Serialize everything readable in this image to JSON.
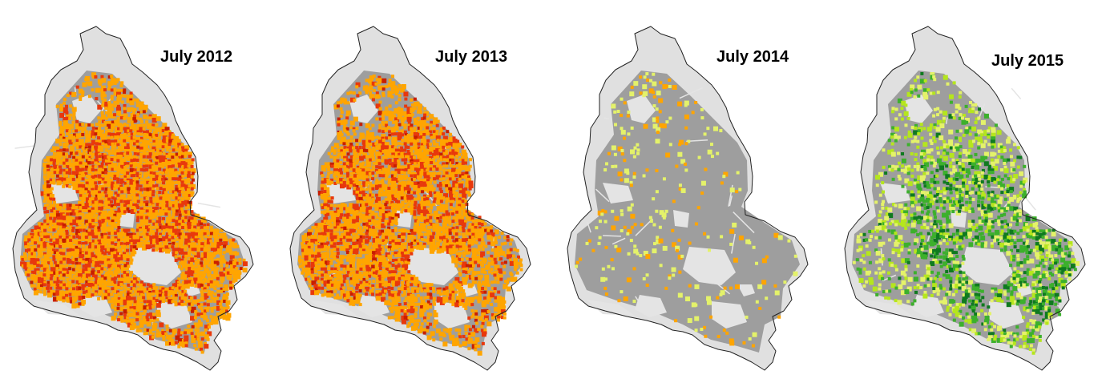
{
  "panels": [
    {
      "title": "July 2012",
      "palette": "deficit",
      "intensity": 0.9
    },
    {
      "title": "July 2013",
      "palette": "deficit",
      "intensity": 0.72
    },
    {
      "title": "July 2014",
      "palette": "mixed",
      "intensity": 0.07
    },
    {
      "title": "July 2015",
      "palette": "surplus",
      "intensity": 0.42
    }
  ],
  "colors": {
    "outside_region": "#e0e0e0",
    "base_land": "#9e9e9e",
    "boundary": "#222222",
    "light_patches": "#e4e4e4",
    "deficit_moderate": "#ffa500",
    "deficit_severe": "#e8380c",
    "deficit_extreme": "#c81e00",
    "surplus_light": "#e4f26a",
    "surplus_moderate": "#b5e61d",
    "surplus_high": "#3cb02c",
    "surplus_extreme": "#0f7a1f"
  }
}
